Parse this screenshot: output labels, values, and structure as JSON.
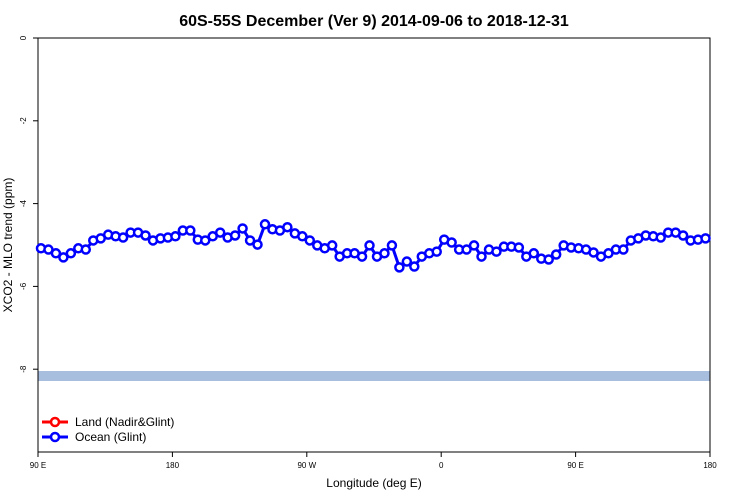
{
  "chart_data": {
    "type": "line",
    "title": "60S-55S December (Ver 9)   2014-09-06 to 2018-12-31",
    "x_label": "Longitude (deg E)",
    "y_label": "XCO2 - MLO trend (ppm)",
    "xlim": [
      90,
      540
    ],
    "xticks": [
      {
        "value": 90,
        "label": "90 E"
      },
      180,
      {
        "value": 270,
        "label": "90 W"
      },
      {
        "value": 360,
        "label": "0"
      },
      {
        "value": 450,
        "label": "90 E"
      },
      {
        "value": 540,
        "label": "180"
      }
    ],
    "ylim": [
      -10,
      0
    ],
    "yticks": [
      0,
      -2,
      -4,
      -6,
      -8
    ],
    "legend": "bottom-left",
    "x": [
      92,
      97,
      102,
      107,
      112,
      117,
      122,
      127,
      132,
      137,
      142,
      147,
      152,
      157,
      162,
      167,
      172,
      177,
      182,
      187,
      192,
      197,
      202,
      207,
      212,
      217,
      222,
      227,
      232,
      237,
      242,
      247,
      252,
      257,
      262,
      267,
      272,
      277,
      282,
      287,
      292,
      297,
      302,
      307,
      312,
      317,
      322,
      327,
      332,
      337,
      342,
      347,
      352,
      357,
      362,
      367,
      372,
      377,
      382,
      387,
      392,
      397,
      402,
      407,
      412,
      417,
      422,
      427,
      432,
      437,
      442,
      447,
      452,
      457,
      462,
      467,
      472,
      477,
      482,
      487,
      492,
      497,
      502,
      507,
      512,
      517,
      522,
      527,
      532,
      537
    ],
    "series": [
      {
        "name": "Land (Nadir&Glint)",
        "color": "#ff0000",
        "values": [
          null,
          null,
          null,
          null,
          null,
          null,
          null,
          null,
          null,
          null,
          null,
          null,
          null,
          null,
          null,
          null,
          null,
          null,
          null,
          null,
          null,
          null,
          null,
          null,
          null,
          null,
          null,
          null,
          null,
          null,
          null,
          null,
          null,
          null,
          null,
          null,
          null,
          null,
          null,
          null,
          null,
          null,
          null,
          null,
          null,
          null,
          null,
          null,
          null,
          null,
          null,
          null,
          null,
          null,
          null,
          null,
          null,
          null,
          null,
          null,
          null,
          null,
          null,
          null,
          null,
          null,
          null,
          null,
          null,
          null,
          null,
          null,
          null,
          null,
          null,
          null,
          null,
          null,
          null,
          null,
          null,
          null,
          null,
          null,
          null,
          null,
          null,
          null,
          null,
          null
        ]
      },
      {
        "name": "Ocean (Glint)",
        "color": "#0000ff",
        "values": [
          -5.08,
          -5.11,
          -5.2,
          -5.3,
          -5.2,
          -5.08,
          -5.11,
          -4.89,
          -4.84,
          -4.75,
          -4.79,
          -4.82,
          -4.7,
          -4.7,
          -4.77,
          -4.89,
          -4.84,
          -4.82,
          -4.79,
          -4.65,
          -4.65,
          -4.87,
          -4.89,
          -4.79,
          -4.7,
          -4.82,
          -4.77,
          -4.6,
          -4.89,
          -4.99,
          -4.5,
          -4.62,
          -4.65,
          -4.57,
          -4.72,
          -4.79,
          -4.89,
          -5.01,
          -5.08,
          -5.01,
          -5.28,
          -5.2,
          -5.2,
          -5.28,
          -5.01,
          -5.28,
          -5.2,
          -5.01,
          -5.54,
          -5.4,
          -5.52,
          -5.28,
          -5.2,
          -5.16,
          -4.87,
          -4.94,
          -5.11,
          -5.11,
          -5.01,
          -5.28,
          -5.11,
          -5.16,
          -5.04,
          -5.04,
          -5.06,
          -5.28,
          -5.2,
          -5.33,
          -5.35,
          -5.23,
          -5.01,
          -5.06,
          -5.08,
          -5.11,
          -5.18,
          -5.28,
          -5.2,
          -5.11,
          -5.11,
          -4.89,
          -4.84,
          -4.77,
          -4.79,
          -4.82,
          -4.7,
          -4.7,
          -4.77,
          -4.89,
          -4.87,
          -4.84
        ]
      }
    ]
  }
}
